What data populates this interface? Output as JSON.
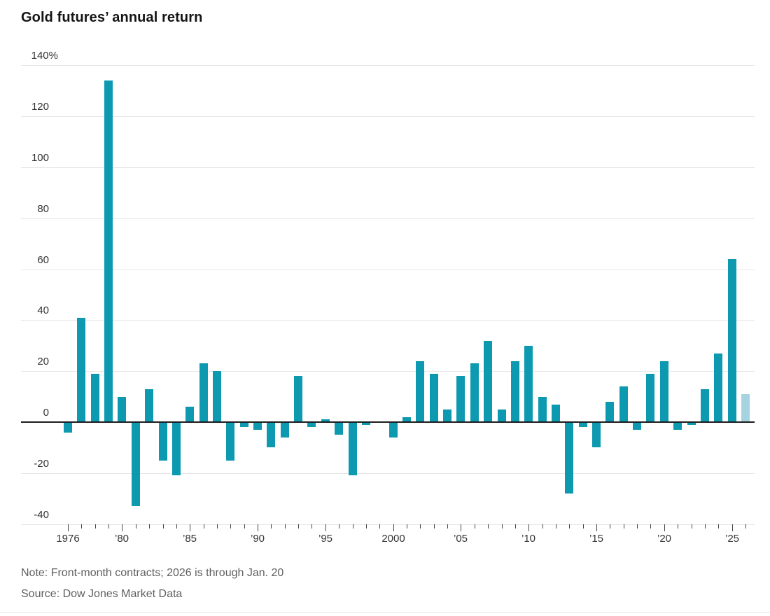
{
  "page": {
    "title": "Gold futures’ annual return",
    "note": "Note: Front-month contracts; 2026 is through Jan. 20",
    "source": "Source: Dow Jones Market Data"
  },
  "chart_data": {
    "type": "bar",
    "title": "Gold futures’ annual return",
    "unit": "percent",
    "years": [
      1976,
      1977,
      1978,
      1979,
      1980,
      1981,
      1982,
      1983,
      1984,
      1985,
      1986,
      1987,
      1988,
      1989,
      1990,
      1991,
      1992,
      1993,
      1994,
      1995,
      1996,
      1997,
      1998,
      1999,
      2000,
      2001,
      2002,
      2003,
      2004,
      2005,
      2006,
      2007,
      2008,
      2009,
      2010,
      2011,
      2012,
      2013,
      2014,
      2015,
      2016,
      2017,
      2018,
      2019,
      2020,
      2021,
      2022,
      2023,
      2024,
      2025,
      2026
    ],
    "values": [
      -4,
      41,
      19,
      134,
      10,
      -33,
      13,
      -15,
      -21,
      6,
      23,
      20,
      -15,
      -2,
      -3,
      -10,
      -6,
      18,
      -2,
      1,
      -5,
      -21,
      -1,
      0,
      -6,
      2,
      24,
      19,
      5,
      18,
      23,
      32,
      5,
      24,
      30,
      10,
      7,
      -28,
      -2,
      -10,
      8,
      14,
      -3,
      19,
      24,
      -3,
      -1,
      13,
      27,
      64,
      11
    ],
    "partial_year": 2026,
    "ylim": [
      -40,
      140
    ],
    "ytick_values": [
      140,
      120,
      100,
      80,
      60,
      40,
      20,
      0,
      -20,
      -40
    ],
    "ytick_labels": [
      "140%",
      "120",
      "100",
      "80",
      "60",
      "40",
      "20",
      "0",
      "-20",
      "-40"
    ],
    "xtick_labels": [
      {
        "year": 1976,
        "label": "1976"
      },
      {
        "year": 1980,
        "label": "’80"
      },
      {
        "year": 1985,
        "label": "’85"
      },
      {
        "year": 1990,
        "label": "’90"
      },
      {
        "year": 1995,
        "label": "’95"
      },
      {
        "year": 2000,
        "label": "2000"
      },
      {
        "year": 2005,
        "label": "’05"
      },
      {
        "year": 2010,
        "label": "’10"
      },
      {
        "year": 2015,
        "label": "’15"
      },
      {
        "year": 2020,
        "label": "’20"
      },
      {
        "year": 2025,
        "label": "’25"
      }
    ],
    "grid": true,
    "legend": "none",
    "colors": {
      "bar": "#0d9ab1",
      "partial_bar": "#a6d3e0",
      "gridline": "#e6e6e6",
      "zero_line": "#1d1d1d",
      "axis_text": "#333333",
      "tick": "#444444",
      "title_text": "#141414",
      "footnote_text": "#606060"
    },
    "note": "Note: Front-month contracts; 2026 is through Jan. 20",
    "source": "Source: Dow Jones Market Data"
  }
}
